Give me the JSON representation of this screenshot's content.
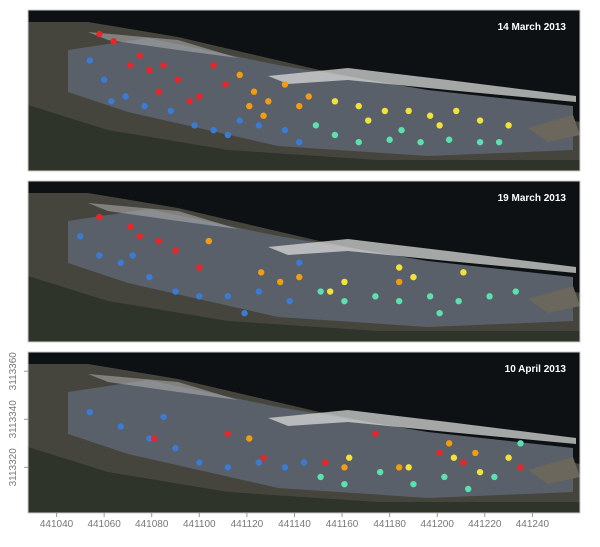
{
  "chart_data": [
    {
      "type": "scatter",
      "title": "14 March 2013",
      "xlim": [
        441028,
        441260
      ],
      "ylim": [
        3113301,
        3113368
      ],
      "series": [
        {
          "color": "#e8262a",
          "x": [
            441058,
            441064,
            441075,
            441079,
            441085,
            441091,
            441100,
            441106,
            441111,
            441071,
            441096,
            441083
          ],
          "y": [
            3113358,
            3113355,
            3113349,
            3113343,
            3113345,
            3113339,
            3113332,
            3113345,
            3113337,
            3113345,
            3113330,
            3113334
          ]
        },
        {
          "color": "#3a7bd5",
          "x": [
            441054,
            441060,
            441069,
            441077,
            441088,
            441098,
            441106,
            441117,
            441125,
            441136,
            441142,
            441063,
            441112
          ],
          "y": [
            3113347,
            3113339,
            3113332,
            3113328,
            3113326,
            3113320,
            3113318,
            3113322,
            3113320,
            3113318,
            3113313,
            3113330,
            3113316
          ]
        },
        {
          "color": "#f39c12",
          "x": [
            441117,
            441123,
            441129,
            441136,
            441142,
            441127,
            441146,
            441121
          ],
          "y": [
            3113341,
            3113334,
            3113330,
            3113337,
            3113328,
            3113324,
            3113332,
            3113328
          ]
        },
        {
          "color": "#f2e33a",
          "x": [
            441157,
            441167,
            441178,
            441188,
            441197,
            441208,
            441218,
            441230,
            441171,
            441201
          ],
          "y": [
            3113330,
            3113328,
            3113326,
            3113326,
            3113324,
            3113326,
            3113322,
            3113320,
            3113322,
            3113320
          ]
        },
        {
          "color": "#5de0b0",
          "x": [
            441149,
            441157,
            441167,
            441180,
            441193,
            441205,
            441218,
            441226,
            441185
          ],
          "y": [
            3113320,
            3113316,
            3113313,
            3113314,
            3113313,
            3113314,
            3113313,
            3113313,
            3113318
          ]
        }
      ]
    },
    {
      "type": "scatter",
      "title": "19 March 2013",
      "xlim": [
        441028,
        441260
      ],
      "ylim": [
        3113301,
        3113368
      ],
      "series": [
        {
          "color": "#e8262a",
          "x": [
            441058,
            441075,
            441083,
            441090,
            441100,
            441071
          ],
          "y": [
            3113353,
            3113345,
            3113343,
            3113339,
            3113332,
            3113349
          ]
        },
        {
          "color": "#3a7bd5",
          "x": [
            441050,
            441058,
            441067,
            441079,
            441090,
            441100,
            441112,
            441125,
            441138,
            441142,
            441119,
            441072
          ],
          "y": [
            3113345,
            3113337,
            3113334,
            3113328,
            3113322,
            3113320,
            3113320,
            3113322,
            3113318,
            3113334,
            3113313,
            3113337
          ]
        },
        {
          "color": "#f39c12",
          "x": [
            441104,
            441126,
            441134,
            441142,
            441184
          ],
          "y": [
            3113343,
            3113330,
            3113326,
            3113328,
            3113326
          ]
        },
        {
          "color": "#f2e33a",
          "x": [
            441161,
            441184,
            441190,
            441211,
            441155
          ],
          "y": [
            3113326,
            3113332,
            3113328,
            3113330,
            3113322
          ]
        },
        {
          "color": "#5de0b0",
          "x": [
            441151,
            441161,
            441174,
            441184,
            441197,
            441209,
            441222,
            441233,
            441201
          ],
          "y": [
            3113322,
            3113318,
            3113320,
            3113318,
            3113320,
            3113318,
            3113320,
            3113322,
            3113313
          ]
        }
      ]
    },
    {
      "type": "scatter",
      "title": "10 April 2013",
      "xlim": [
        441028,
        441260
      ],
      "ylim": [
        3113301,
        3113368
      ],
      "xticks": [
        441040,
        441060,
        441080,
        441100,
        441120,
        441140,
        441160,
        441180,
        441200,
        441220,
        441240
      ],
      "yticks": [
        3113320,
        3113340,
        3113360
      ],
      "series": [
        {
          "color": "#3a7bd5",
          "x": [
            441054,
            441067,
            441079,
            441090,
            441100,
            441112,
            441125,
            441136,
            441144,
            441085
          ],
          "y": [
            3113343,
            3113337,
            3113332,
            3113328,
            3113322,
            3113320,
            3113322,
            3113320,
            3113322,
            3113341
          ]
        },
        {
          "color": "#e8262a",
          "x": [
            441081,
            441112,
            441127,
            441153,
            441174,
            441201,
            441211,
            441235
          ],
          "y": [
            3113332,
            3113334,
            3113324,
            3113322,
            3113334,
            3113326,
            3113322,
            3113320
          ]
        },
        {
          "color": "#f39c12",
          "x": [
            441121,
            441161,
            441184,
            441205,
            441216
          ],
          "y": [
            3113332,
            3113320,
            3113320,
            3113330,
            3113326
          ]
        },
        {
          "color": "#f2e33a",
          "x": [
            441163,
            441188,
            441207,
            441230,
            441218
          ],
          "y": [
            3113324,
            3113320,
            3113324,
            3113324,
            3113318
          ]
        },
        {
          "color": "#5de0b0",
          "x": [
            441151,
            441161,
            441176,
            441190,
            441203,
            441213,
            441224,
            441235
          ],
          "y": [
            3113316,
            3113313,
            3113318,
            3113313,
            3113316,
            3113311,
            3113316,
            3113330
          ]
        }
      ]
    }
  ]
}
